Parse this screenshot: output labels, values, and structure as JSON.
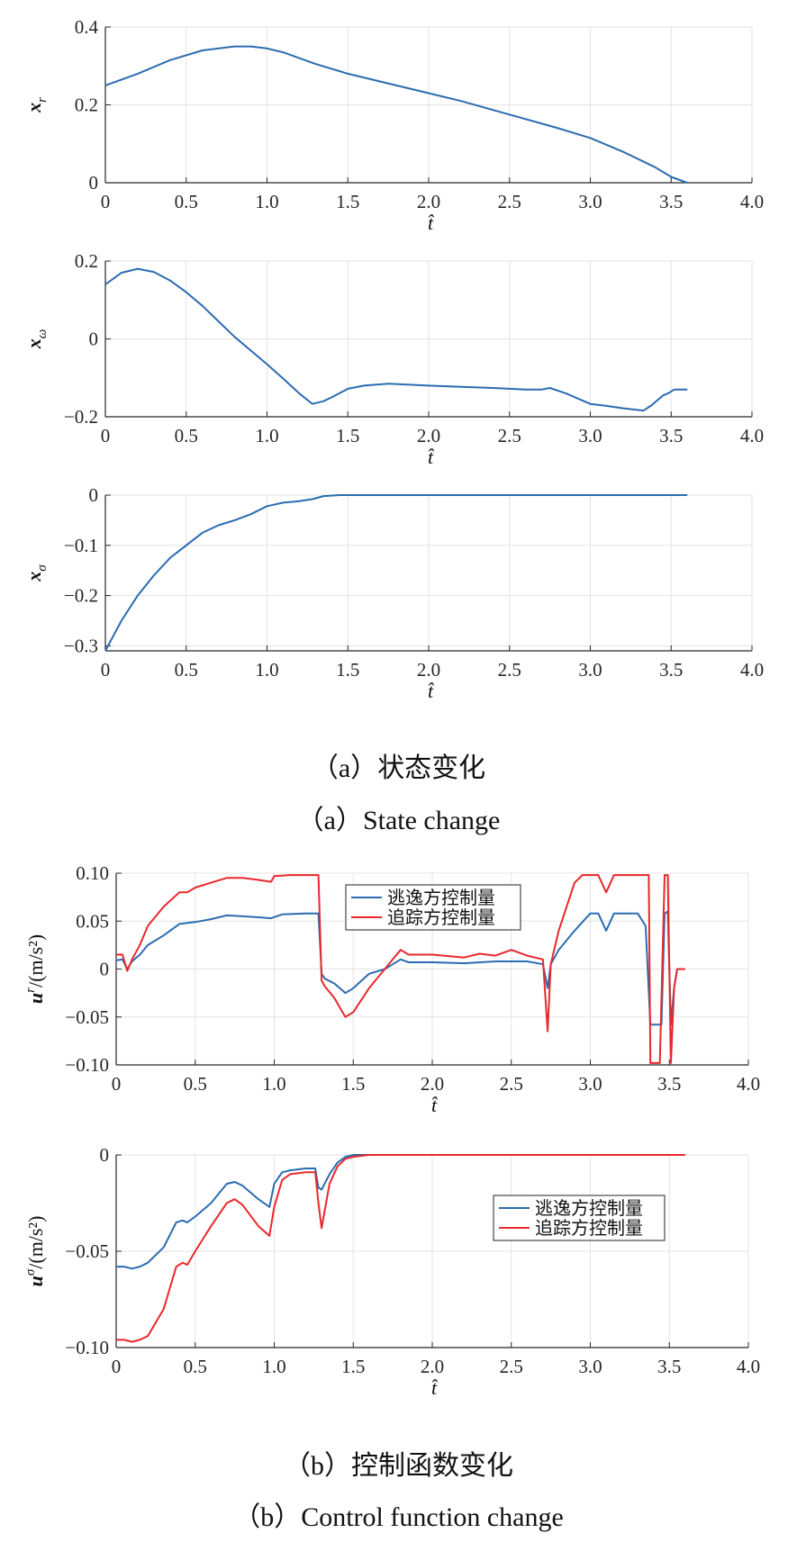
{
  "captions": {
    "a_cn": "（a）状态变化",
    "a_en": "（a）State change",
    "b_cn": "（b）控制函数变化",
    "b_en": "（b）Control function change"
  },
  "colors": {
    "blue": "#2b6cb0",
    "red": "#e8282d",
    "grid": "#e3e3e3",
    "axis": "#262626"
  },
  "chart_data": [
    {
      "type": "line",
      "xlabel": "t̂",
      "ylabel": "x_r",
      "ylabel_main": "x",
      "ylabel_sub": "r",
      "xlim": [
        0,
        4
      ],
      "ylim": [
        0,
        0.4
      ],
      "xticks": [
        0,
        0.5,
        1,
        1.5,
        2,
        2.5,
        3,
        3.5,
        4
      ],
      "xticklabels": [
        "0",
        "0.5",
        "1.0",
        "1.5",
        "2.0",
        "2.5",
        "3.0",
        "3.5",
        "4.0"
      ],
      "yticks": [
        0,
        0.2,
        0.4
      ],
      "yticklabels": [
        "0",
        "0.2",
        "0.4"
      ],
      "grid": true,
      "series": [
        {
          "color": "#2b6cb0",
          "x": [
            0,
            0.2,
            0.4,
            0.6,
            0.8,
            0.9,
            1.0,
            1.1,
            1.2,
            1.3,
            1.5,
            1.8,
            2.0,
            2.2,
            2.5,
            2.8,
            3.0,
            3.2,
            3.4,
            3.5,
            3.6
          ],
          "y": [
            0.25,
            0.28,
            0.315,
            0.34,
            0.35,
            0.35,
            0.345,
            0.335,
            0.32,
            0.305,
            0.28,
            0.25,
            0.23,
            0.21,
            0.175,
            0.14,
            0.115,
            0.08,
            0.04,
            0.015,
            0
          ]
        }
      ]
    },
    {
      "type": "line",
      "xlabel": "t̂",
      "ylabel": "x_ω",
      "ylabel_main": "x",
      "ylabel_sub": "ω",
      "xlim": [
        0,
        4
      ],
      "ylim": [
        -0.2,
        0.2
      ],
      "xticks": [
        0,
        0.5,
        1,
        1.5,
        2,
        2.5,
        3,
        3.5,
        4
      ],
      "xticklabels": [
        "0",
        "0.5",
        "1.0",
        "1.5",
        "2.0",
        "2.5",
        "3.0",
        "3.5",
        "4.0"
      ],
      "yticks": [
        -0.2,
        0,
        0.2
      ],
      "yticklabels": [
        "−0.2",
        "0",
        "0.2"
      ],
      "grid": true,
      "series": [
        {
          "color": "#2b6cb0",
          "x": [
            0,
            0.1,
            0.2,
            0.3,
            0.4,
            0.5,
            0.6,
            0.7,
            0.8,
            0.9,
            1.0,
            1.1,
            1.2,
            1.28,
            1.35,
            1.4,
            1.5,
            1.6,
            1.75,
            1.9,
            2.0,
            2.2,
            2.4,
            2.6,
            2.7,
            2.75,
            2.85,
            3.0,
            3.1,
            3.2,
            3.33,
            3.38,
            3.45,
            3.48,
            3.52,
            3.6
          ],
          "y": [
            0.14,
            0.17,
            0.18,
            0.172,
            0.15,
            0.12,
            0.085,
            0.045,
            0.005,
            -0.03,
            -0.065,
            -0.102,
            -0.14,
            -0.167,
            -0.16,
            -0.15,
            -0.128,
            -0.12,
            -0.115,
            -0.118,
            -0.12,
            -0.123,
            -0.126,
            -0.13,
            -0.13,
            -0.126,
            -0.14,
            -0.167,
            -0.172,
            -0.178,
            -0.184,
            -0.17,
            -0.145,
            -0.14,
            -0.13,
            -0.13
          ]
        }
      ]
    },
    {
      "type": "line",
      "xlabel": "t̂",
      "ylabel": "x_σ",
      "ylabel_main": "x",
      "ylabel_sub": "σ",
      "xlim": [
        0,
        4
      ],
      "ylim": [
        -0.31,
        0
      ],
      "xticks": [
        0,
        0.5,
        1,
        1.5,
        2,
        2.5,
        3,
        3.5,
        4
      ],
      "xticklabels": [
        "0",
        "0.5",
        "1.0",
        "1.5",
        "2.0",
        "2.5",
        "3.0",
        "3.5",
        "4.0"
      ],
      "yticks": [
        -0.3,
        -0.2,
        -0.1,
        0
      ],
      "yticklabels": [
        "−0.3",
        "−0.2",
        "−0.1",
        "0"
      ],
      "grid": true,
      "series": [
        {
          "color": "#2b6cb0",
          "x": [
            0,
            0.1,
            0.2,
            0.3,
            0.4,
            0.5,
            0.6,
            0.7,
            0.8,
            0.9,
            1.0,
            1.1,
            1.2,
            1.28,
            1.35,
            1.45,
            1.6,
            2.0,
            3.0,
            3.6
          ],
          "y": [
            -0.31,
            -0.25,
            -0.2,
            -0.16,
            -0.125,
            -0.1,
            -0.075,
            -0.06,
            -0.05,
            -0.038,
            -0.022,
            -0.015,
            -0.012,
            -0.008,
            -0.002,
            0,
            0,
            0,
            0,
            0
          ]
        }
      ]
    },
    {
      "type": "line",
      "xlabel": "t̂",
      "ylabel": "u^r/(m/s²)",
      "ylabel_main": "u",
      "ylabel_sup": "r",
      "ylabel_unit": "/(m/s²)",
      "xlim": [
        0,
        4
      ],
      "ylim": [
        -0.1,
        0.1
      ],
      "xticks": [
        0,
        0.5,
        1,
        1.5,
        2,
        2.5,
        3,
        3.5,
        4
      ],
      "xticklabels": [
        "0",
        "0.5",
        "1.0",
        "1.5",
        "2.0",
        "2.5",
        "3.0",
        "3.5",
        "4.0"
      ],
      "yticks": [
        -0.1,
        -0.05,
        0,
        0.05,
        0.1
      ],
      "yticklabels": [
        "−0.10",
        "−0.05",
        "0",
        "0.05",
        "0.10"
      ],
      "grid": true,
      "legend": {
        "position": "top-center",
        "entries": [
          "逃逸方控制量",
          "追踪方控制量"
        ]
      },
      "series": [
        {
          "name": "逃逸方控制量",
          "color": "#2b6cb0",
          "x": [
            0,
            0.04,
            0.07,
            0.1,
            0.15,
            0.2,
            0.3,
            0.4,
            0.5,
            0.6,
            0.7,
            0.8,
            0.9,
            0.98,
            1.05,
            1.2,
            1.28,
            1.3,
            1.32,
            1.38,
            1.45,
            1.5,
            1.6,
            1.7,
            1.75,
            1.8,
            1.85,
            2.0,
            2.2,
            2.4,
            2.6,
            2.7,
            2.73,
            2.75,
            2.8,
            2.9,
            3.0,
            3.05,
            3.1,
            3.15,
            3.2,
            3.3,
            3.35,
            3.38,
            3.45,
            3.47,
            3.49,
            3.51,
            3.53,
            3.55,
            3.58,
            3.6
          ],
          "y": [
            0.009,
            0.01,
            0.0,
            0.008,
            0.015,
            0.025,
            0.035,
            0.047,
            0.049,
            0.052,
            0.056,
            0.055,
            0.054,
            0.053,
            0.057,
            0.058,
            0.058,
            -0.005,
            -0.01,
            -0.015,
            -0.025,
            -0.02,
            -0.005,
            0.0,
            0.005,
            0.01,
            0.007,
            0.007,
            0.006,
            0.008,
            0.008,
            0.005,
            -0.02,
            0.005,
            0.02,
            0.04,
            0.058,
            0.058,
            0.04,
            0.058,
            0.058,
            0.058,
            0.045,
            -0.058,
            -0.058,
            0.058,
            0.06,
            -0.058,
            -0.02,
            0.0,
            0.0,
            0.0
          ]
        },
        {
          "name": "追踪方控制量",
          "color": "#e8282d",
          "x": [
            0,
            0.04,
            0.07,
            0.1,
            0.15,
            0.2,
            0.3,
            0.4,
            0.45,
            0.5,
            0.6,
            0.7,
            0.8,
            0.9,
            0.98,
            1.0,
            1.1,
            1.2,
            1.28,
            1.3,
            1.32,
            1.38,
            1.45,
            1.5,
            1.6,
            1.7,
            1.75,
            1.8,
            1.85,
            2.0,
            2.2,
            2.3,
            2.4,
            2.5,
            2.6,
            2.7,
            2.73,
            2.75,
            2.8,
            2.9,
            2.95,
            3.05,
            3.1,
            3.15,
            3.3,
            3.33,
            3.37,
            3.38,
            3.44,
            3.47,
            3.49,
            3.51,
            3.53,
            3.55,
            3.58,
            3.6
          ],
          "y": [
            0.015,
            0.015,
            -0.002,
            0.01,
            0.025,
            0.045,
            0.065,
            0.08,
            0.08,
            0.085,
            0.09,
            0.095,
            0.095,
            0.093,
            0.091,
            0.097,
            0.098,
            0.098,
            0.098,
            -0.012,
            -0.018,
            -0.03,
            -0.05,
            -0.045,
            -0.02,
            0.0,
            0.01,
            0.02,
            0.015,
            0.015,
            0.012,
            0.016,
            0.014,
            0.02,
            0.014,
            0.01,
            -0.065,
            0.005,
            0.04,
            0.09,
            0.098,
            0.098,
            0.08,
            0.098,
            0.098,
            0.098,
            0.098,
            -0.098,
            -0.098,
            0.098,
            0.098,
            -0.098,
            -0.02,
            0.0,
            0.0,
            0.0
          ]
        }
      ]
    },
    {
      "type": "line",
      "xlabel": "t̂",
      "ylabel": "u^σ/(m/s²)",
      "ylabel_main": "u",
      "ylabel_sup": "σ",
      "ylabel_unit": "/(m/s²)",
      "xlim": [
        0,
        4
      ],
      "ylim": [
        -0.1,
        0
      ],
      "xticks": [
        0,
        0.5,
        1,
        1.5,
        2,
        2.5,
        3,
        3.5,
        4
      ],
      "xticklabels": [
        "0",
        "0.5",
        "1.0",
        "1.5",
        "2.0",
        "2.5",
        "3.0",
        "3.5",
        "4.0"
      ],
      "yticks": [
        -0.1,
        -0.05,
        0
      ],
      "yticklabels": [
        "−0.10",
        "−0.05",
        "0"
      ],
      "grid": true,
      "legend": {
        "position": "top-right",
        "entries": [
          "逃逸方控制量",
          "追踪方控制量"
        ]
      },
      "series": [
        {
          "name": "逃逸方控制量",
          "color": "#2b6cb0",
          "x": [
            0,
            0.05,
            0.1,
            0.15,
            0.2,
            0.3,
            0.38,
            0.42,
            0.45,
            0.5,
            0.6,
            0.7,
            0.75,
            0.8,
            0.9,
            0.97,
            1.0,
            1.05,
            1.1,
            1.2,
            1.26,
            1.28,
            1.3,
            1.35,
            1.4,
            1.45,
            1.5,
            1.6,
            2.0,
            3.0,
            3.6
          ],
          "y": [
            -0.058,
            -0.058,
            -0.059,
            -0.058,
            -0.056,
            -0.048,
            -0.035,
            -0.034,
            -0.035,
            -0.032,
            -0.025,
            -0.015,
            -0.014,
            -0.016,
            -0.023,
            -0.027,
            -0.015,
            -0.009,
            -0.008,
            -0.007,
            -0.007,
            -0.017,
            -0.018,
            -0.01,
            -0.004,
            -0.001,
            0,
            0,
            0,
            0,
            0
          ]
        },
        {
          "name": "追踪方控制量",
          "color": "#e8282d",
          "x": [
            0,
            0.05,
            0.1,
            0.15,
            0.2,
            0.3,
            0.38,
            0.42,
            0.45,
            0.5,
            0.6,
            0.7,
            0.75,
            0.8,
            0.9,
            0.97,
            1.0,
            1.05,
            1.1,
            1.2,
            1.26,
            1.28,
            1.3,
            1.35,
            1.4,
            1.45,
            1.5,
            1.6,
            2.0,
            3.0,
            3.6
          ],
          "y": [
            -0.096,
            -0.096,
            -0.097,
            -0.096,
            -0.094,
            -0.08,
            -0.058,
            -0.056,
            -0.057,
            -0.05,
            -0.037,
            -0.025,
            -0.023,
            -0.026,
            -0.037,
            -0.042,
            -0.027,
            -0.013,
            -0.01,
            -0.009,
            -0.009,
            -0.025,
            -0.038,
            -0.015,
            -0.006,
            -0.002,
            -0.001,
            0,
            0,
            0,
            0
          ]
        }
      ]
    }
  ]
}
